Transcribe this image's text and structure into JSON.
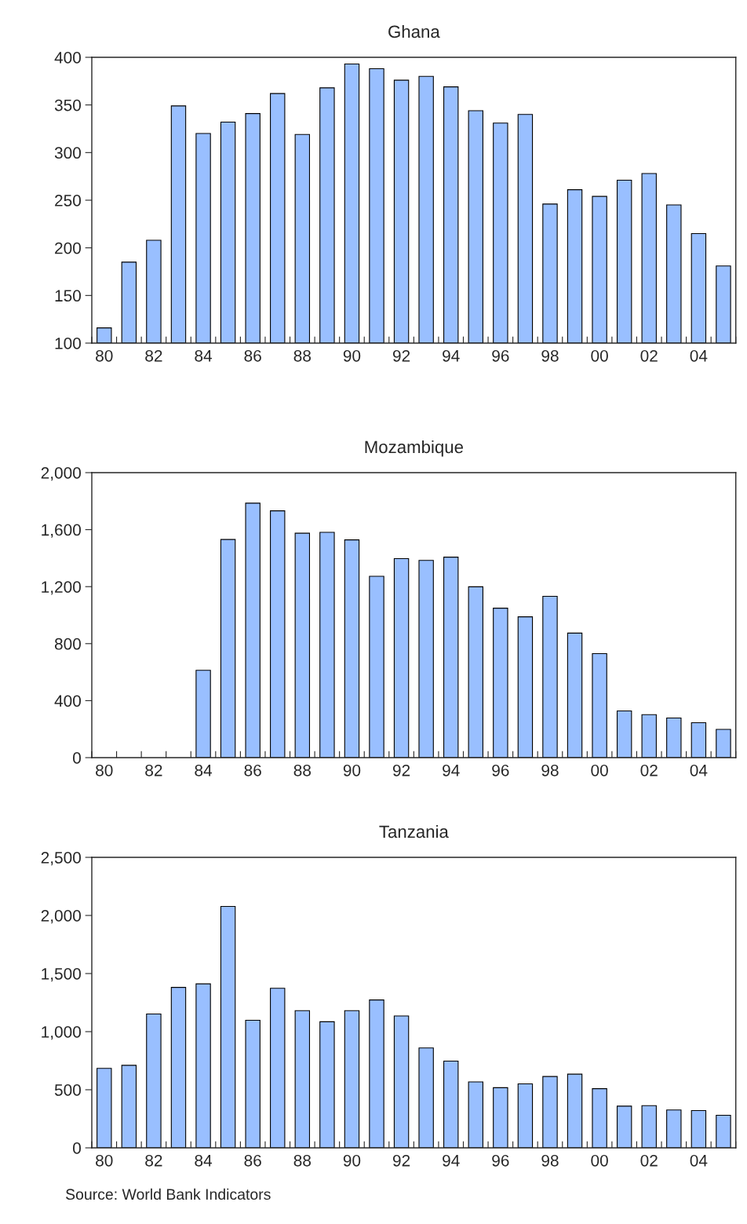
{
  "chart_data": [
    {
      "type": "bar",
      "title": "Ghana",
      "categories": [
        "80",
        null,
        "82",
        null,
        "84",
        null,
        "86",
        null,
        "88",
        null,
        "90",
        null,
        "92",
        null,
        "94",
        null,
        "96",
        null,
        "98",
        null,
        "00",
        null,
        "02",
        null,
        "04",
        null
      ],
      "series": [
        {
          "color": "#99bfff",
          "values": [
            116,
            185,
            208,
            349,
            320,
            332,
            341,
            362,
            319,
            368,
            393,
            388,
            376,
            380,
            369,
            344,
            331,
            340,
            246,
            261,
            254,
            271,
            278,
            245,
            215,
            181
          ]
        }
      ],
      "ylim": [
        100,
        400
      ],
      "yticks": [
        100,
        150,
        200,
        250,
        300,
        350,
        400
      ],
      "grid": false,
      "legend": false
    },
    {
      "type": "bar",
      "title": "Mozambique",
      "categories": [
        "80",
        null,
        "82",
        null,
        "84",
        null,
        "86",
        null,
        "88",
        null,
        "90",
        null,
        "92",
        null,
        "94",
        null,
        "96",
        null,
        "98",
        null,
        "00",
        null,
        "02",
        null,
        "04",
        null
      ],
      "series": [
        {
          "color": "#99bfff",
          "values": [
            null,
            null,
            null,
            null,
            613,
            1531,
            1786,
            1732,
            1575,
            1581,
            1528,
            1273,
            1397,
            1384,
            1407,
            1199,
            1049,
            988,
            1132,
            874,
            730,
            328,
            302,
            278,
            245,
            198
          ]
        }
      ],
      "ylim": [
        0,
        2000
      ],
      "yticks": [
        {
          "value": 0,
          "label": "0"
        },
        {
          "value": 400,
          "label": "400"
        },
        {
          "value": 800,
          "label": "800"
        },
        {
          "value": 1200,
          "label": "1,200"
        },
        {
          "value": 1600,
          "label": "1,600"
        },
        {
          "value": 2000,
          "label": "2,000"
        }
      ],
      "grid": false,
      "legend": false
    },
    {
      "type": "bar",
      "title": "Tanzania",
      "categories": [
        "80",
        null,
        "82",
        null,
        "84",
        null,
        "86",
        null,
        "88",
        null,
        "90",
        null,
        "92",
        null,
        "94",
        null,
        "96",
        null,
        "98",
        null,
        "00",
        null,
        "02",
        null,
        "04",
        null
      ],
      "series": [
        {
          "color": "#99bfff",
          "values": [
            684,
            710,
            1152,
            1381,
            1411,
            2078,
            1098,
            1373,
            1181,
            1085,
            1181,
            1273,
            1135,
            860,
            747,
            568,
            518,
            551,
            614,
            634,
            509,
            359,
            363,
            326,
            321,
            280
          ]
        }
      ],
      "ylim": [
        0,
        2500
      ],
      "yticks": [
        {
          "value": 0,
          "label": "0"
        },
        {
          "value": 500,
          "label": "500"
        },
        {
          "value": 1000,
          "label": "1,000"
        },
        {
          "value": 1500,
          "label": "1,500"
        },
        {
          "value": 2000,
          "label": "2,000"
        },
        {
          "value": 2500,
          "label": "2,500"
        }
      ],
      "grid": false,
      "legend": false,
      "annotations": [
        "Source: World Bank Indicators"
      ]
    }
  ]
}
